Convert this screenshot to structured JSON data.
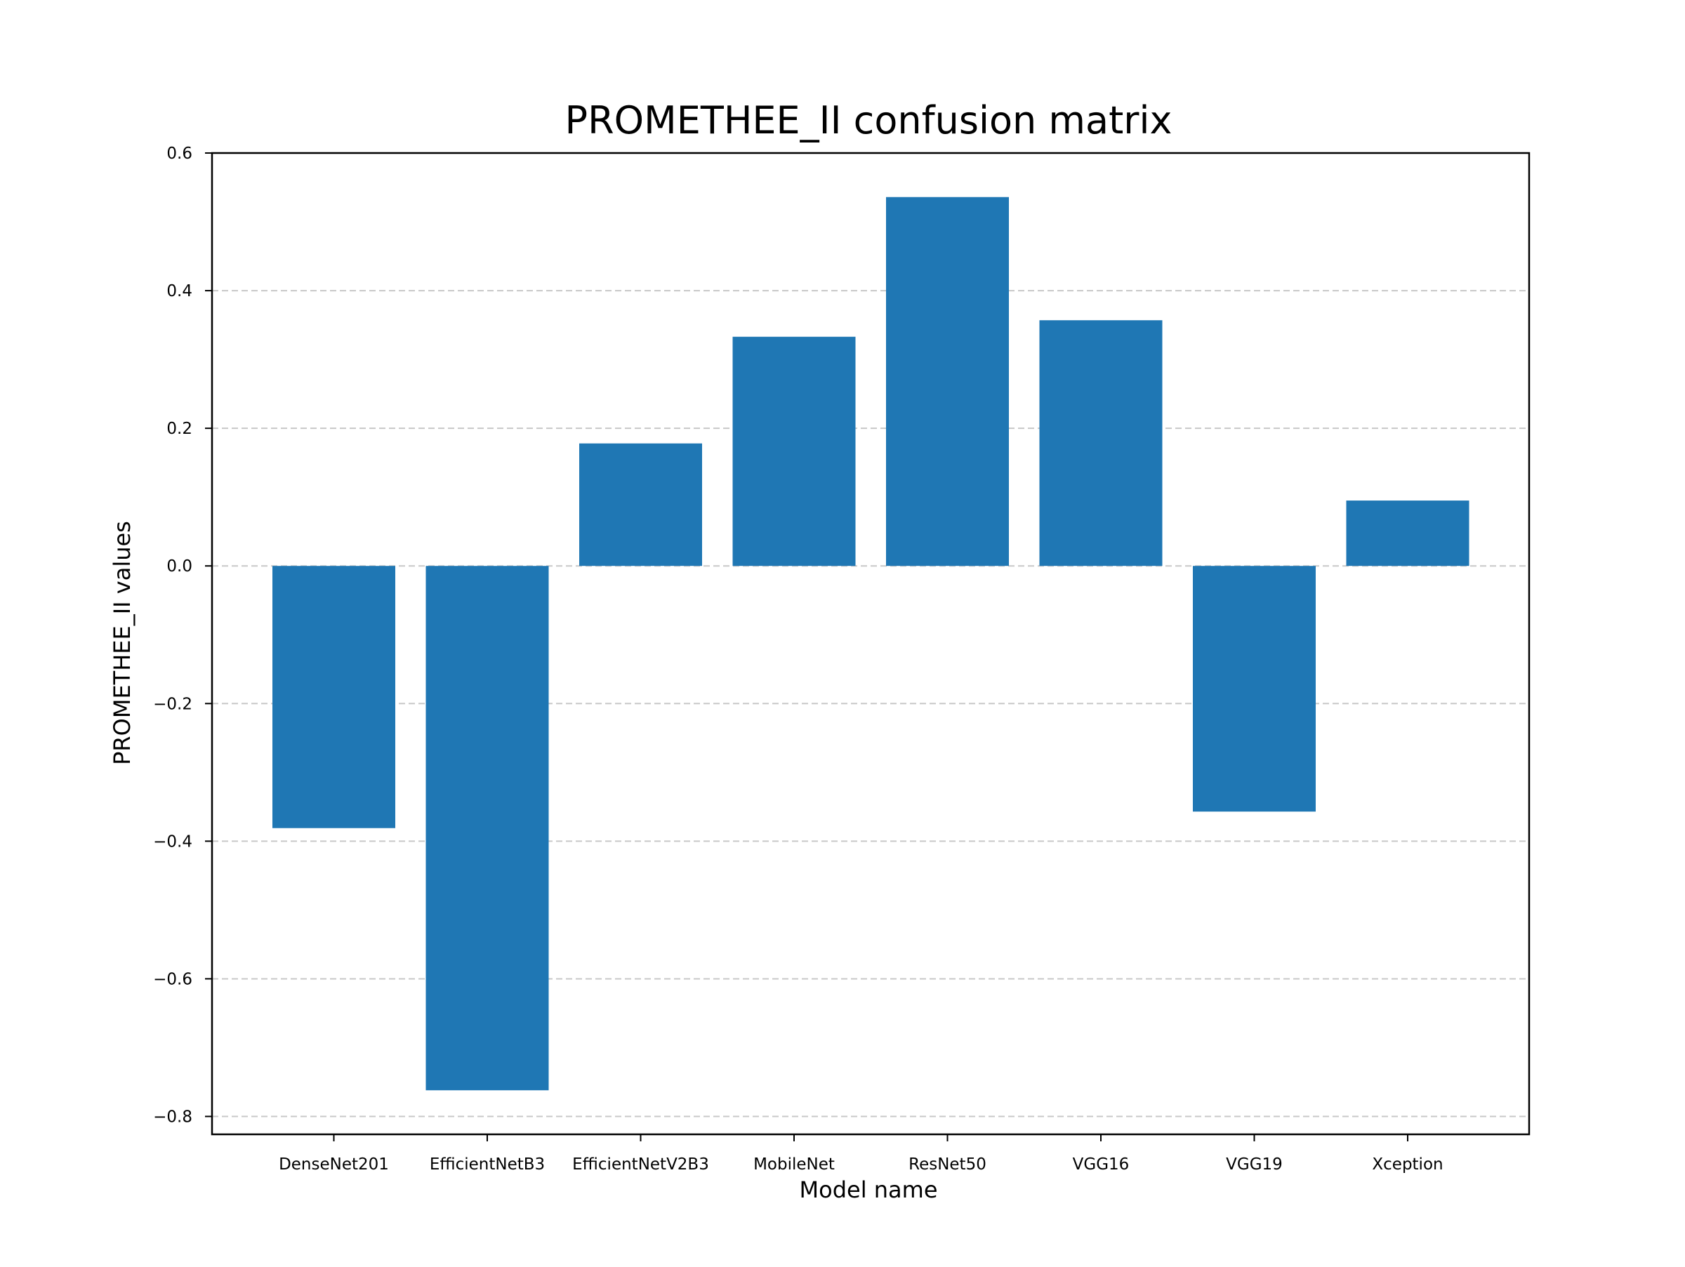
{
  "chart_data": {
    "type": "bar",
    "title": "PROMETHEE_II confusion matrix",
    "xlabel": "Model name",
    "ylabel": "PROMETHEE_II values",
    "categories": [
      "DenseNet201",
      "EfficientNetB3",
      "EfficientNetV2B3",
      "MobileNet",
      "ResNet50",
      "VGG16",
      "VGG19",
      "Xception"
    ],
    "values": [
      -0.381,
      -0.762,
      0.178,
      0.333,
      0.536,
      0.357,
      -0.357,
      0.095
    ],
    "ylim": [
      -0.826,
      0.6
    ],
    "yticks": [
      0.6,
      0.4,
      0.2,
      0.0,
      -0.2,
      -0.4,
      -0.6,
      -0.8
    ],
    "ytick_labels": [
      "0.6",
      "0.4",
      "0.2",
      "0.0",
      "−0.2",
      "−0.4",
      "−0.6",
      "−0.8"
    ],
    "grid": "y-dashed",
    "bar_color": "#1f77b4",
    "grid_color": "#c8c8c8"
  }
}
